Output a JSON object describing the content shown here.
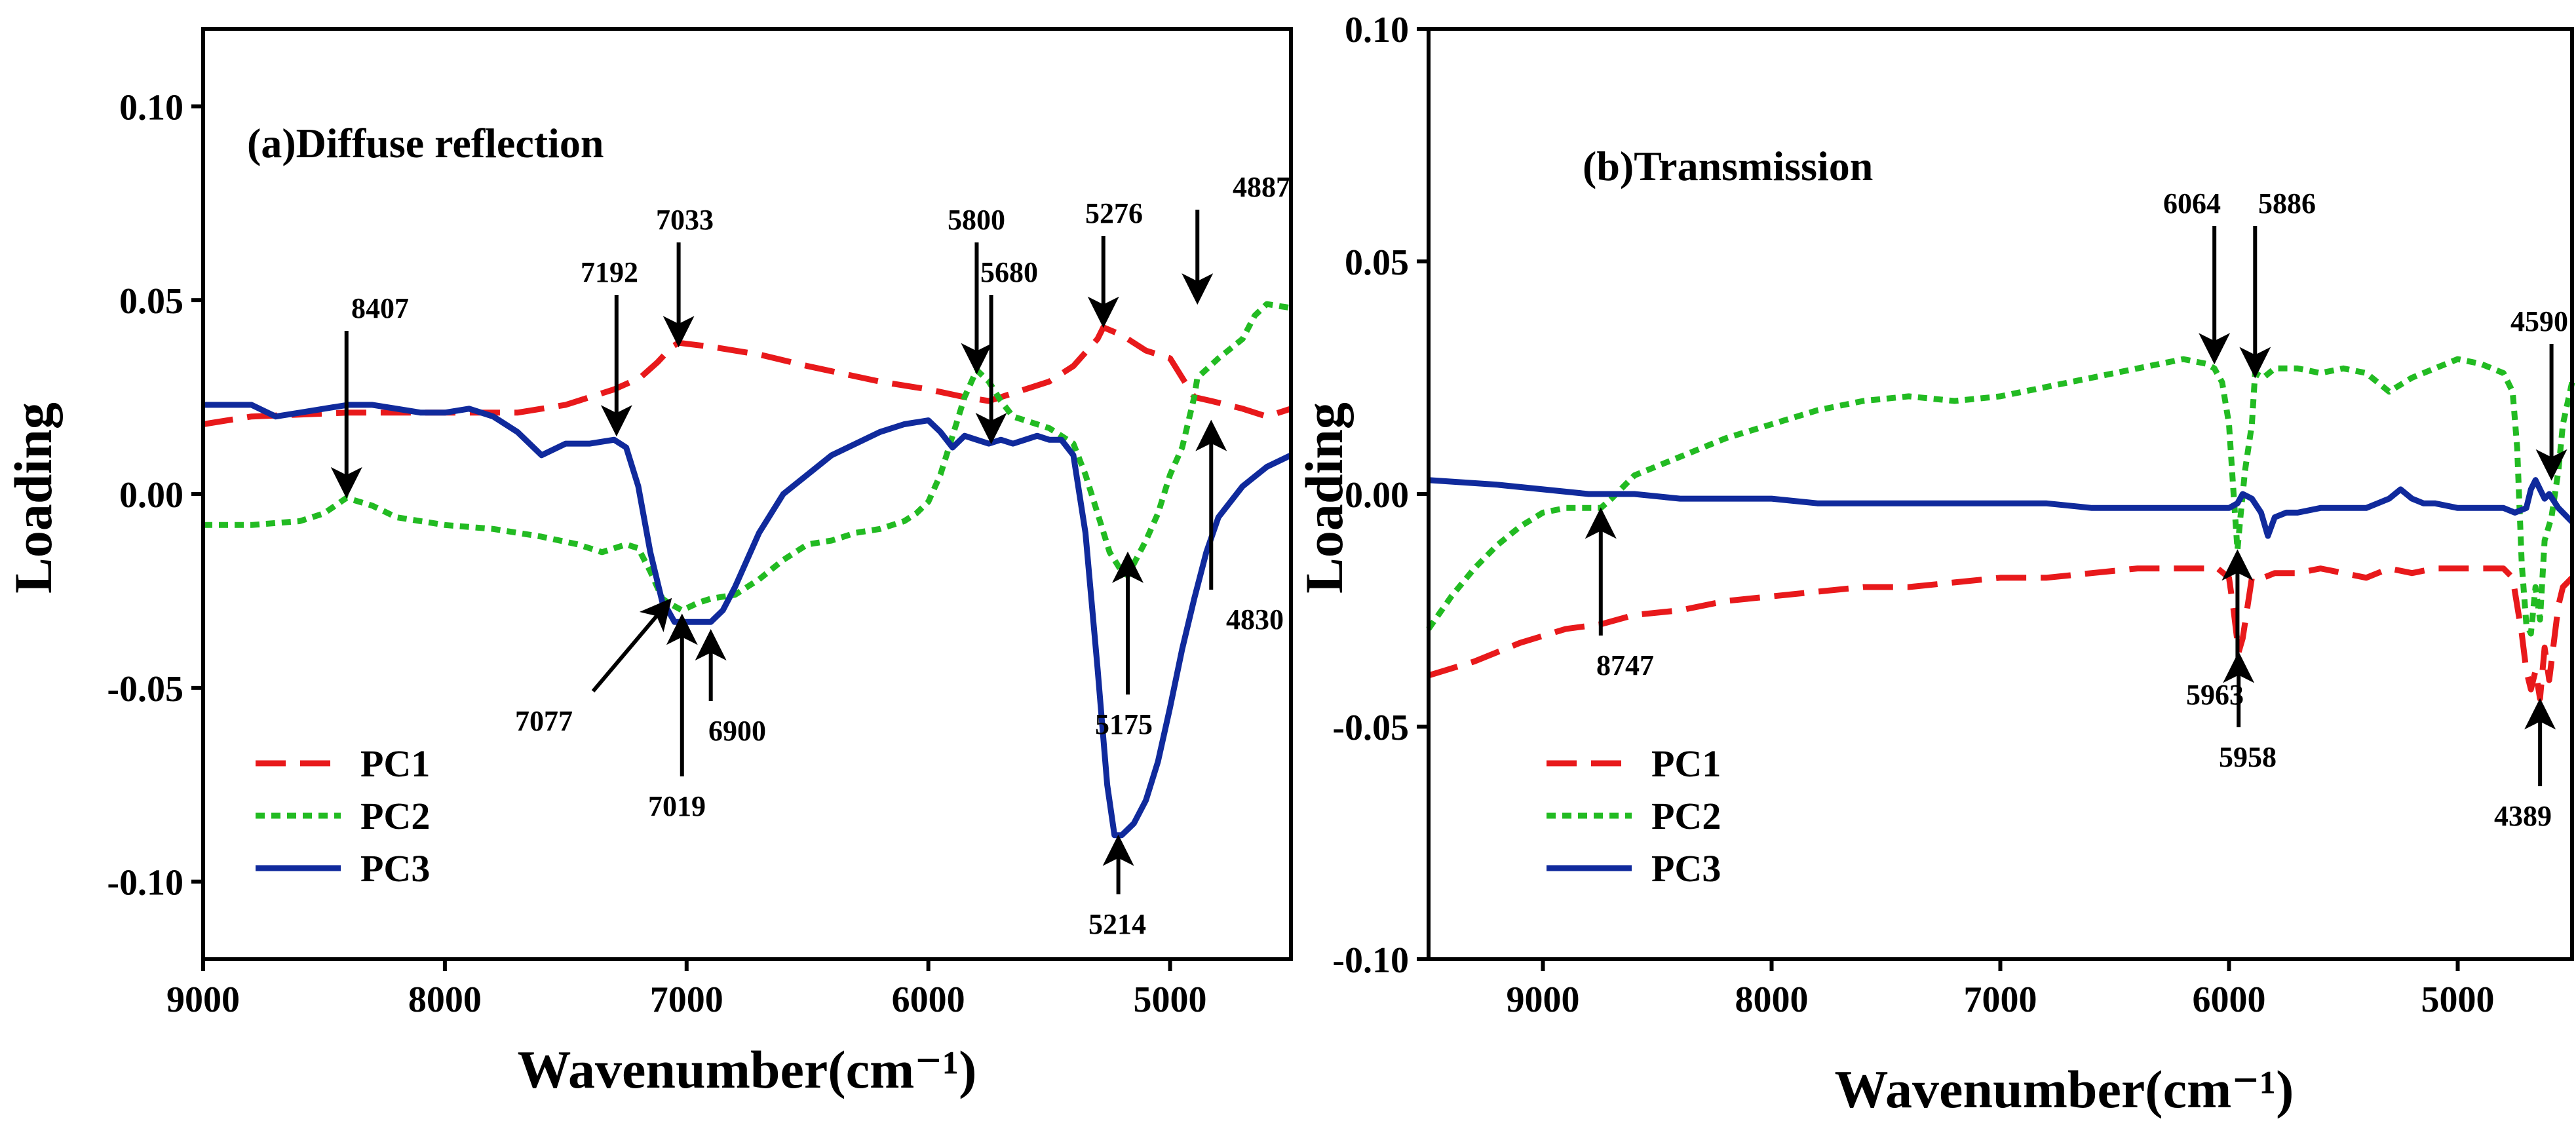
{
  "chart_data": [
    {
      "type": "line",
      "panel": "a",
      "title": "(a)Diffuse reflection",
      "xlabel": "Wavenumber(cm⁻¹)",
      "ylabel": "Loading",
      "xlim": [
        9000,
        4500
      ],
      "ylim": [
        -0.12,
        0.12
      ],
      "xticks": [
        9000,
        8000,
        7000,
        6000,
        5000
      ],
      "xtick_labels": [
        "9000",
        "8000",
        "7000",
        "6000",
        "5000"
      ],
      "yticks": [
        -0.1,
        -0.05,
        0.0,
        0.05,
        0.1
      ],
      "ytick_labels": [
        "-0.10",
        "-0.05",
        "0.00",
        "0.05",
        "0.10"
      ],
      "legend": [
        "PC1",
        "PC2",
        "PC3"
      ],
      "legend_position": "bottom-left",
      "series": [
        {
          "name": "PC1",
          "color": "#e8191b",
          "style": "dashed",
          "x": [
            9000,
            8800,
            8400,
            8000,
            7700,
            7500,
            7300,
            7192,
            7120,
            7060,
            7033,
            6900,
            6700,
            6500,
            6200,
            6000,
            5850,
            5750,
            5650,
            5500,
            5400,
            5300,
            5276,
            5200,
            5100,
            5000,
            4950,
            4900,
            4830,
            4700,
            4600,
            4500
          ],
          "y": [
            0.018,
            0.02,
            0.021,
            0.021,
            0.021,
            0.023,
            0.027,
            0.03,
            0.034,
            0.038,
            0.039,
            0.038,
            0.036,
            0.033,
            0.029,
            0.027,
            0.025,
            0.024,
            0.026,
            0.029,
            0.033,
            0.04,
            0.043,
            0.041,
            0.037,
            0.035,
            0.03,
            0.025,
            0.024,
            0.022,
            0.02,
            0.022
          ]
        },
        {
          "name": "PC2",
          "color": "#22bb22",
          "style": "dotted",
          "x": [
            9000,
            8800,
            8600,
            8500,
            8407,
            8300,
            8200,
            8000,
            7800,
            7600,
            7450,
            7350,
            7250,
            7200,
            7150,
            7100,
            7077,
            7019,
            6950,
            6900,
            6800,
            6700,
            6600,
            6500,
            6400,
            6300,
            6200,
            6100,
            6050,
            6000,
            5950,
            5900,
            5850,
            5800,
            5750,
            5700,
            5650,
            5600,
            5500,
            5400,
            5350,
            5300,
            5250,
            5200,
            5175,
            5150,
            5100,
            5050,
            5000,
            4950,
            4900,
            4887,
            4800,
            4700,
            4650,
            4600,
            4500
          ],
          "y": [
            -0.008,
            -0.008,
            -0.007,
            -0.005,
            -0.001,
            -0.003,
            -0.006,
            -0.008,
            -0.009,
            -0.011,
            -0.013,
            -0.015,
            -0.013,
            -0.014,
            -0.02,
            -0.027,
            -0.028,
            -0.03,
            -0.028,
            -0.027,
            -0.026,
            -0.022,
            -0.017,
            -0.013,
            -0.012,
            -0.01,
            -0.009,
            -0.007,
            -0.005,
            -0.002,
            0.005,
            0.015,
            0.025,
            0.032,
            0.029,
            0.024,
            0.02,
            0.019,
            0.017,
            0.013,
            0.005,
            -0.005,
            -0.015,
            -0.02,
            -0.021,
            -0.018,
            -0.012,
            -0.005,
            0.005,
            0.012,
            0.025,
            0.03,
            0.035,
            0.04,
            0.046,
            0.049,
            0.048
          ]
        },
        {
          "name": "PC3",
          "color": "#102a9c",
          "style": "solid",
          "x": [
            9000,
            8900,
            8800,
            8700,
            8600,
            8500,
            8400,
            8300,
            8200,
            8100,
            8000,
            7900,
            7800,
            7700,
            7600,
            7500,
            7400,
            7300,
            7250,
            7200,
            7150,
            7100,
            7077,
            7050,
            7019,
            6950,
            6900,
            6850,
            6800,
            6700,
            6600,
            6500,
            6400,
            6300,
            6200,
            6100,
            6000,
            5950,
            5900,
            5850,
            5800,
            5750,
            5700,
            5650,
            5600,
            5550,
            5500,
            5450,
            5400,
            5350,
            5300,
            5260,
            5230,
            5214,
            5200,
            5150,
            5100,
            5050,
            5000,
            4950,
            4900,
            4850,
            4800,
            4700,
            4600,
            4500
          ],
          "y": [
            0.023,
            0.023,
            0.023,
            0.02,
            0.021,
            0.022,
            0.023,
            0.023,
            0.022,
            0.021,
            0.021,
            0.022,
            0.02,
            0.016,
            0.01,
            0.013,
            0.013,
            0.014,
            0.012,
            0.002,
            -0.015,
            -0.028,
            -0.03,
            -0.033,
            -0.033,
            -0.033,
            -0.033,
            -0.03,
            -0.024,
            -0.01,
            0.0,
            0.005,
            0.01,
            0.013,
            0.016,
            0.018,
            0.019,
            0.016,
            0.012,
            0.015,
            0.014,
            0.013,
            0.014,
            0.013,
            0.014,
            0.015,
            0.014,
            0.014,
            0.01,
            -0.01,
            -0.045,
            -0.075,
            -0.088,
            -0.088,
            -0.088,
            -0.085,
            -0.079,
            -0.069,
            -0.055,
            -0.04,
            -0.027,
            -0.015,
            -0.006,
            0.002,
            0.007,
            0.01
          ]
        }
      ],
      "annotations": [
        {
          "label": "8407",
          "at": [
            8407,
            -0.001
          ]
        },
        {
          "label": "7192",
          "at": [
            7290,
            0.015
          ]
        },
        {
          "label": "7033",
          "at": [
            7033,
            0.038
          ]
        },
        {
          "label": "5800",
          "at": [
            5800,
            0.031
          ]
        },
        {
          "label": "5680",
          "at": [
            5740,
            0.013
          ]
        },
        {
          "label": "5276",
          "at": [
            5276,
            0.043
          ]
        },
        {
          "label": "4887",
          "at": [
            4887,
            0.049
          ]
        },
        {
          "label": "7077",
          "at": [
            7077,
            -0.028
          ]
        },
        {
          "label": "7019",
          "at": [
            7019,
            -0.031
          ]
        },
        {
          "label": "6900",
          "at": [
            6900,
            -0.035
          ]
        },
        {
          "label": "5175",
          "at": [
            5175,
            -0.015
          ]
        },
        {
          "label": "5214",
          "at": [
            5214,
            -0.088
          ]
        },
        {
          "label": "4830",
          "at": [
            4830,
            0.019
          ]
        }
      ]
    },
    {
      "type": "line",
      "panel": "b",
      "title": "(b)Transmission",
      "xlabel": "Wavenumber(cm⁻¹)",
      "ylabel": "Loading",
      "xlim": [
        9500,
        4500
      ],
      "ylim": [
        -0.1,
        0.1
      ],
      "xticks": [
        9000,
        8000,
        7000,
        6000,
        5000
      ],
      "xtick_labels": [
        "9000",
        "8000",
        "7000",
        "6000",
        "5000"
      ],
      "yticks": [
        -0.1,
        -0.05,
        0.0,
        0.05,
        0.1
      ],
      "ytick_labels": [
        "-0.10",
        "-0.05",
        "0.00",
        "0.05",
        "0.10"
      ],
      "legend": [
        "PC1",
        "PC2",
        "PC3"
      ],
      "legend_position": "bottom-left",
      "series": [
        {
          "name": "PC1",
          "color": "#e8191b",
          "style": "dashed",
          "x": [
            9500,
            9300,
            9100,
            8900,
            8747,
            8600,
            8400,
            8200,
            8000,
            7800,
            7600,
            7400,
            7200,
            7000,
            6800,
            6600,
            6400,
            6200,
            6050,
            6000,
            5980,
            5958,
            5940,
            5900,
            5850,
            5800,
            5700,
            5600,
            5500,
            5400,
            5300,
            5200,
            5100,
            5000,
            4900,
            4800,
            4760,
            4720,
            4700,
            4680,
            4660,
            4640,
            4620,
            4600,
            4580,
            4560,
            4540,
            4500
          ],
          "y": [
            -0.039,
            -0.036,
            -0.032,
            -0.029,
            -0.028,
            -0.026,
            -0.025,
            -0.023,
            -0.022,
            -0.021,
            -0.02,
            -0.02,
            -0.019,
            -0.018,
            -0.018,
            -0.017,
            -0.016,
            -0.016,
            -0.016,
            -0.018,
            -0.025,
            -0.034,
            -0.031,
            -0.018,
            -0.018,
            -0.017,
            -0.017,
            -0.016,
            -0.017,
            -0.018,
            -0.016,
            -0.017,
            -0.016,
            -0.016,
            -0.016,
            -0.016,
            -0.018,
            -0.03,
            -0.038,
            -0.042,
            -0.038,
            -0.044,
            -0.033,
            -0.04,
            -0.032,
            -0.024,
            -0.02,
            -0.018
          ]
        },
        {
          "name": "PC2",
          "color": "#22bb22",
          "style": "dotted",
          "x": [
            9500,
            9400,
            9300,
            9200,
            9100,
            9000,
            8900,
            8800,
            8747,
            8700,
            8600,
            8400,
            8200,
            8000,
            7800,
            7600,
            7400,
            7200,
            7000,
            6800,
            6600,
            6400,
            6200,
            6100,
            6064,
            6030,
            6000,
            5980,
            5963,
            5950,
            5930,
            5900,
            5886,
            5850,
            5800,
            5700,
            5600,
            5500,
            5400,
            5300,
            5200,
            5100,
            5000,
            4900,
            4800,
            4760,
            4740,
            4720,
            4700,
            4680,
            4660,
            4640,
            4620,
            4590,
            4560,
            4540,
            4500
          ],
          "y": [
            -0.029,
            -0.022,
            -0.016,
            -0.011,
            -0.007,
            -0.004,
            -0.003,
            -0.003,
            -0.003,
            -0.001,
            0.004,
            0.008,
            0.012,
            0.015,
            0.018,
            0.02,
            0.021,
            0.02,
            0.021,
            0.023,
            0.025,
            0.027,
            0.029,
            0.028,
            0.027,
            0.024,
            0.015,
            0.0,
            -0.012,
            -0.005,
            0.005,
            0.015,
            0.026,
            0.025,
            0.027,
            0.027,
            0.026,
            0.027,
            0.026,
            0.022,
            0.025,
            0.027,
            0.029,
            0.028,
            0.026,
            0.022,
            0.01,
            -0.015,
            -0.028,
            -0.03,
            -0.02,
            -0.027,
            -0.01,
            -0.005,
            0.005,
            0.015,
            0.024
          ]
        },
        {
          "name": "PC3",
          "color": "#102a9c",
          "style": "solid",
          "x": [
            9500,
            9200,
            9000,
            8800,
            8600,
            8400,
            8200,
            8000,
            7800,
            7600,
            7400,
            7200,
            7000,
            6800,
            6600,
            6400,
            6200,
            6000,
            5963,
            5940,
            5900,
            5860,
            5830,
            5800,
            5750,
            5700,
            5600,
            5500,
            5400,
            5300,
            5250,
            5200,
            5150,
            5100,
            5000,
            4900,
            4800,
            4750,
            4700,
            4680,
            4660,
            4640,
            4620,
            4600,
            4560,
            4500
          ],
          "y": [
            0.003,
            0.002,
            0.001,
            0.0,
            0.0,
            -0.001,
            -0.001,
            -0.001,
            -0.002,
            -0.002,
            -0.002,
            -0.002,
            -0.002,
            -0.002,
            -0.003,
            -0.003,
            -0.003,
            -0.003,
            -0.002,
            0.0,
            -0.001,
            -0.004,
            -0.009,
            -0.005,
            -0.004,
            -0.004,
            -0.003,
            -0.003,
            -0.003,
            -0.001,
            0.001,
            -0.001,
            -0.002,
            -0.002,
            -0.003,
            -0.003,
            -0.003,
            -0.004,
            -0.003,
            0.001,
            0.003,
            0.001,
            -0.001,
            0.0,
            -0.003,
            -0.006
          ]
        }
      ],
      "annotations": [
        {
          "label": "6064",
          "at": [
            6064,
            0.028
          ]
        },
        {
          "label": "5886",
          "at": [
            5886,
            0.025
          ]
        },
        {
          "label": "4590",
          "at": [
            4590,
            0.003
          ]
        },
        {
          "label": "8747",
          "at": [
            8747,
            -0.003
          ]
        },
        {
          "label": "5963",
          "at": [
            5963,
            -0.012
          ]
        },
        {
          "label": "5958",
          "at": [
            5958,
            -0.034
          ]
        },
        {
          "label": "4389",
          "at": [
            4640,
            -0.044
          ]
        }
      ]
    }
  ]
}
